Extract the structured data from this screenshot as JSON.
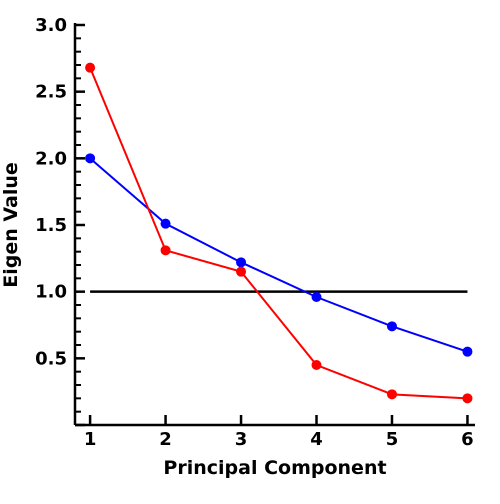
{
  "chart_data": {
    "type": "line",
    "title": "",
    "xlabel": "Principal Component",
    "ylabel": "Eigen Value",
    "x": [
      1,
      2,
      3,
      4,
      5,
      6
    ],
    "xticks": [
      "1",
      "2",
      "3",
      "4",
      "5",
      "6"
    ],
    "yticks": [
      "0.5",
      "1.0",
      "1.5",
      "2.0",
      "2.5",
      "3.0"
    ],
    "ytick_values": [
      0.5,
      1.0,
      1.5,
      2.0,
      2.5,
      3.0
    ],
    "xlim": [
      0.8,
      6.1
    ],
    "ylim": [
      0.0,
      3.0
    ],
    "y_minor_step": 0.1,
    "series": [
      {
        "color": "#0000ff",
        "values": [
          2.0,
          1.51,
          1.22,
          0.96,
          0.74,
          0.55
        ]
      },
      {
        "color": "#ff0000",
        "values": [
          2.68,
          1.31,
          1.15,
          0.45,
          0.23,
          0.2
        ]
      }
    ],
    "reference_line": {
      "y": 1.0,
      "color": "#000000"
    },
    "grid": false,
    "legend": "none"
  }
}
